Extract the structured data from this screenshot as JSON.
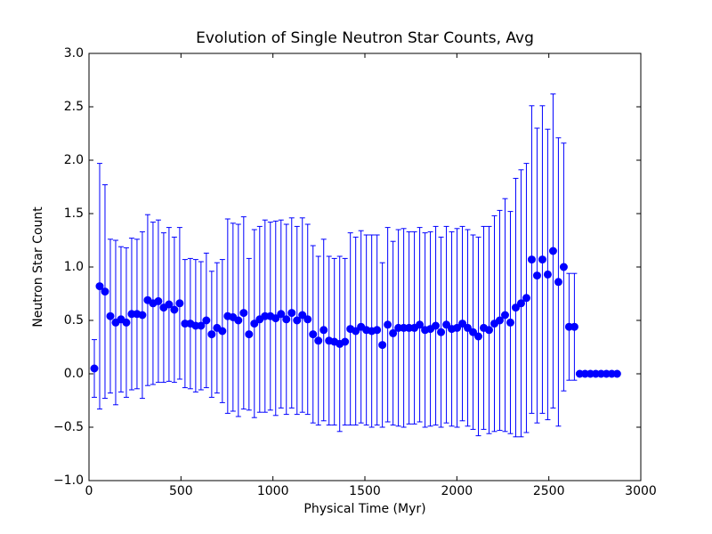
{
  "chart_data": {
    "type": "errorbar-scatter",
    "title": "Evolution of Single Neutron Star Counts, Avg",
    "xlabel": "Physical Time (Myr)",
    "ylabel": "Neutron Star Count",
    "xlim": [
      0,
      3000
    ],
    "ylim": [
      -1,
      3
    ],
    "xticks": [
      0,
      500,
      1000,
      1500,
      2000,
      2500,
      3000
    ],
    "yticks": [
      {
        "value": -1,
        "label": "−1.0"
      },
      {
        "value": -0.5,
        "label": "−0.5"
      },
      {
        "value": 0,
        "label": "0.0"
      },
      {
        "value": 0.5,
        "label": "0.5"
      },
      {
        "value": 1,
        "label": "1.0"
      },
      {
        "value": 1.5,
        "label": "1.5"
      },
      {
        "value": 2,
        "label": "2.0"
      },
      {
        "value": 2.5,
        "label": "2.5"
      },
      {
        "value": 3,
        "label": "3.0"
      }
    ],
    "x": [
      29,
      58,
      87,
      116,
      145,
      174,
      203,
      232,
      261,
      290,
      319,
      348,
      377,
      406,
      435,
      464,
      493,
      522,
      551,
      580,
      609,
      638,
      667,
      696,
      725,
      754,
      783,
      812,
      841,
      870,
      899,
      928,
      957,
      986,
      1015,
      1044,
      1073,
      1102,
      1131,
      1160,
      1189,
      1218,
      1247,
      1276,
      1305,
      1334,
      1363,
      1392,
      1421,
      1450,
      1479,
      1508,
      1537,
      1566,
      1595,
      1624,
      1653,
      1682,
      1711,
      1740,
      1769,
      1798,
      1827,
      1856,
      1885,
      1914,
      1943,
      1972,
      2001,
      2030,
      2059,
      2088,
      2117,
      2146,
      2175,
      2204,
      2233,
      2262,
      2291,
      2320,
      2349,
      2378,
      2407,
      2436,
      2465,
      2494,
      2523,
      2552,
      2581,
      2610,
      2639,
      2668,
      2697,
      2726,
      2755,
      2784,
      2813,
      2842,
      2871
    ],
    "series": [
      {
        "color": "#0000ff",
        "values": [
          0.05,
          0.82,
          0.77,
          0.54,
          0.48,
          0.51,
          0.48,
          0.56,
          0.56,
          0.55,
          0.69,
          0.66,
          0.68,
          0.62,
          0.65,
          0.6,
          0.66,
          0.47,
          0.47,
          0.45,
          0.45,
          0.5,
          0.37,
          0.43,
          0.4,
          0.54,
          0.53,
          0.5,
          0.57,
          0.37,
          0.47,
          0.51,
          0.54,
          0.54,
          0.52,
          0.56,
          0.51,
          0.57,
          0.5,
          0.55,
          0.51,
          0.37,
          0.31,
          0.41,
          0.31,
          0.3,
          0.28,
          0.3,
          0.42,
          0.4,
          0.44,
          0.41,
          0.4,
          0.41,
          0.27,
          0.46,
          0.38,
          0.43,
          0.43,
          0.43,
          0.43,
          0.46,
          0.41,
          0.42,
          0.45,
          0.39,
          0.46,
          0.42,
          0.43,
          0.47,
          0.43,
          0.39,
          0.35,
          0.43,
          0.41,
          0.47,
          0.5,
          0.55,
          0.48,
          0.62,
          0.66,
          0.71,
          1.07,
          0.92,
          1.07,
          0.93,
          1.15,
          0.86,
          1.0,
          0.44,
          0.44,
          0,
          0,
          0,
          0,
          0,
          0,
          0,
          0
        ],
        "errors": [
          0.27,
          1.15,
          1.0,
          0.72,
          0.77,
          0.68,
          0.7,
          0.71,
          0.7,
          0.78,
          0.8,
          0.76,
          0.76,
          0.7,
          0.72,
          0.68,
          0.71,
          0.6,
          0.61,
          0.62,
          0.6,
          0.63,
          0.59,
          0.61,
          0.67,
          0.91,
          0.88,
          0.9,
          0.9,
          0.71,
          0.88,
          0.87,
          0.9,
          0.88,
          0.91,
          0.88,
          0.89,
          0.89,
          0.88,
          0.91,
          0.89,
          0.83,
          0.79,
          0.85,
          0.79,
          0.78,
          0.82,
          0.78,
          0.9,
          0.88,
          0.9,
          0.89,
          0.9,
          0.89,
          0.77,
          0.91,
          0.86,
          0.92,
          0.93,
          0.9,
          0.9,
          0.91,
          0.91,
          0.91,
          0.93,
          0.89,
          0.92,
          0.91,
          0.93,
          0.91,
          0.92,
          0.91,
          0.93,
          0.95,
          0.97,
          1.01,
          1.03,
          1.09,
          1.04,
          1.21,
          1.25,
          1.26,
          1.44,
          1.38,
          1.44,
          1.36,
          1.47,
          1.35,
          1.16,
          0.5,
          0.5,
          0,
          0,
          0,
          0,
          0,
          0,
          0,
          0
        ]
      }
    ]
  }
}
